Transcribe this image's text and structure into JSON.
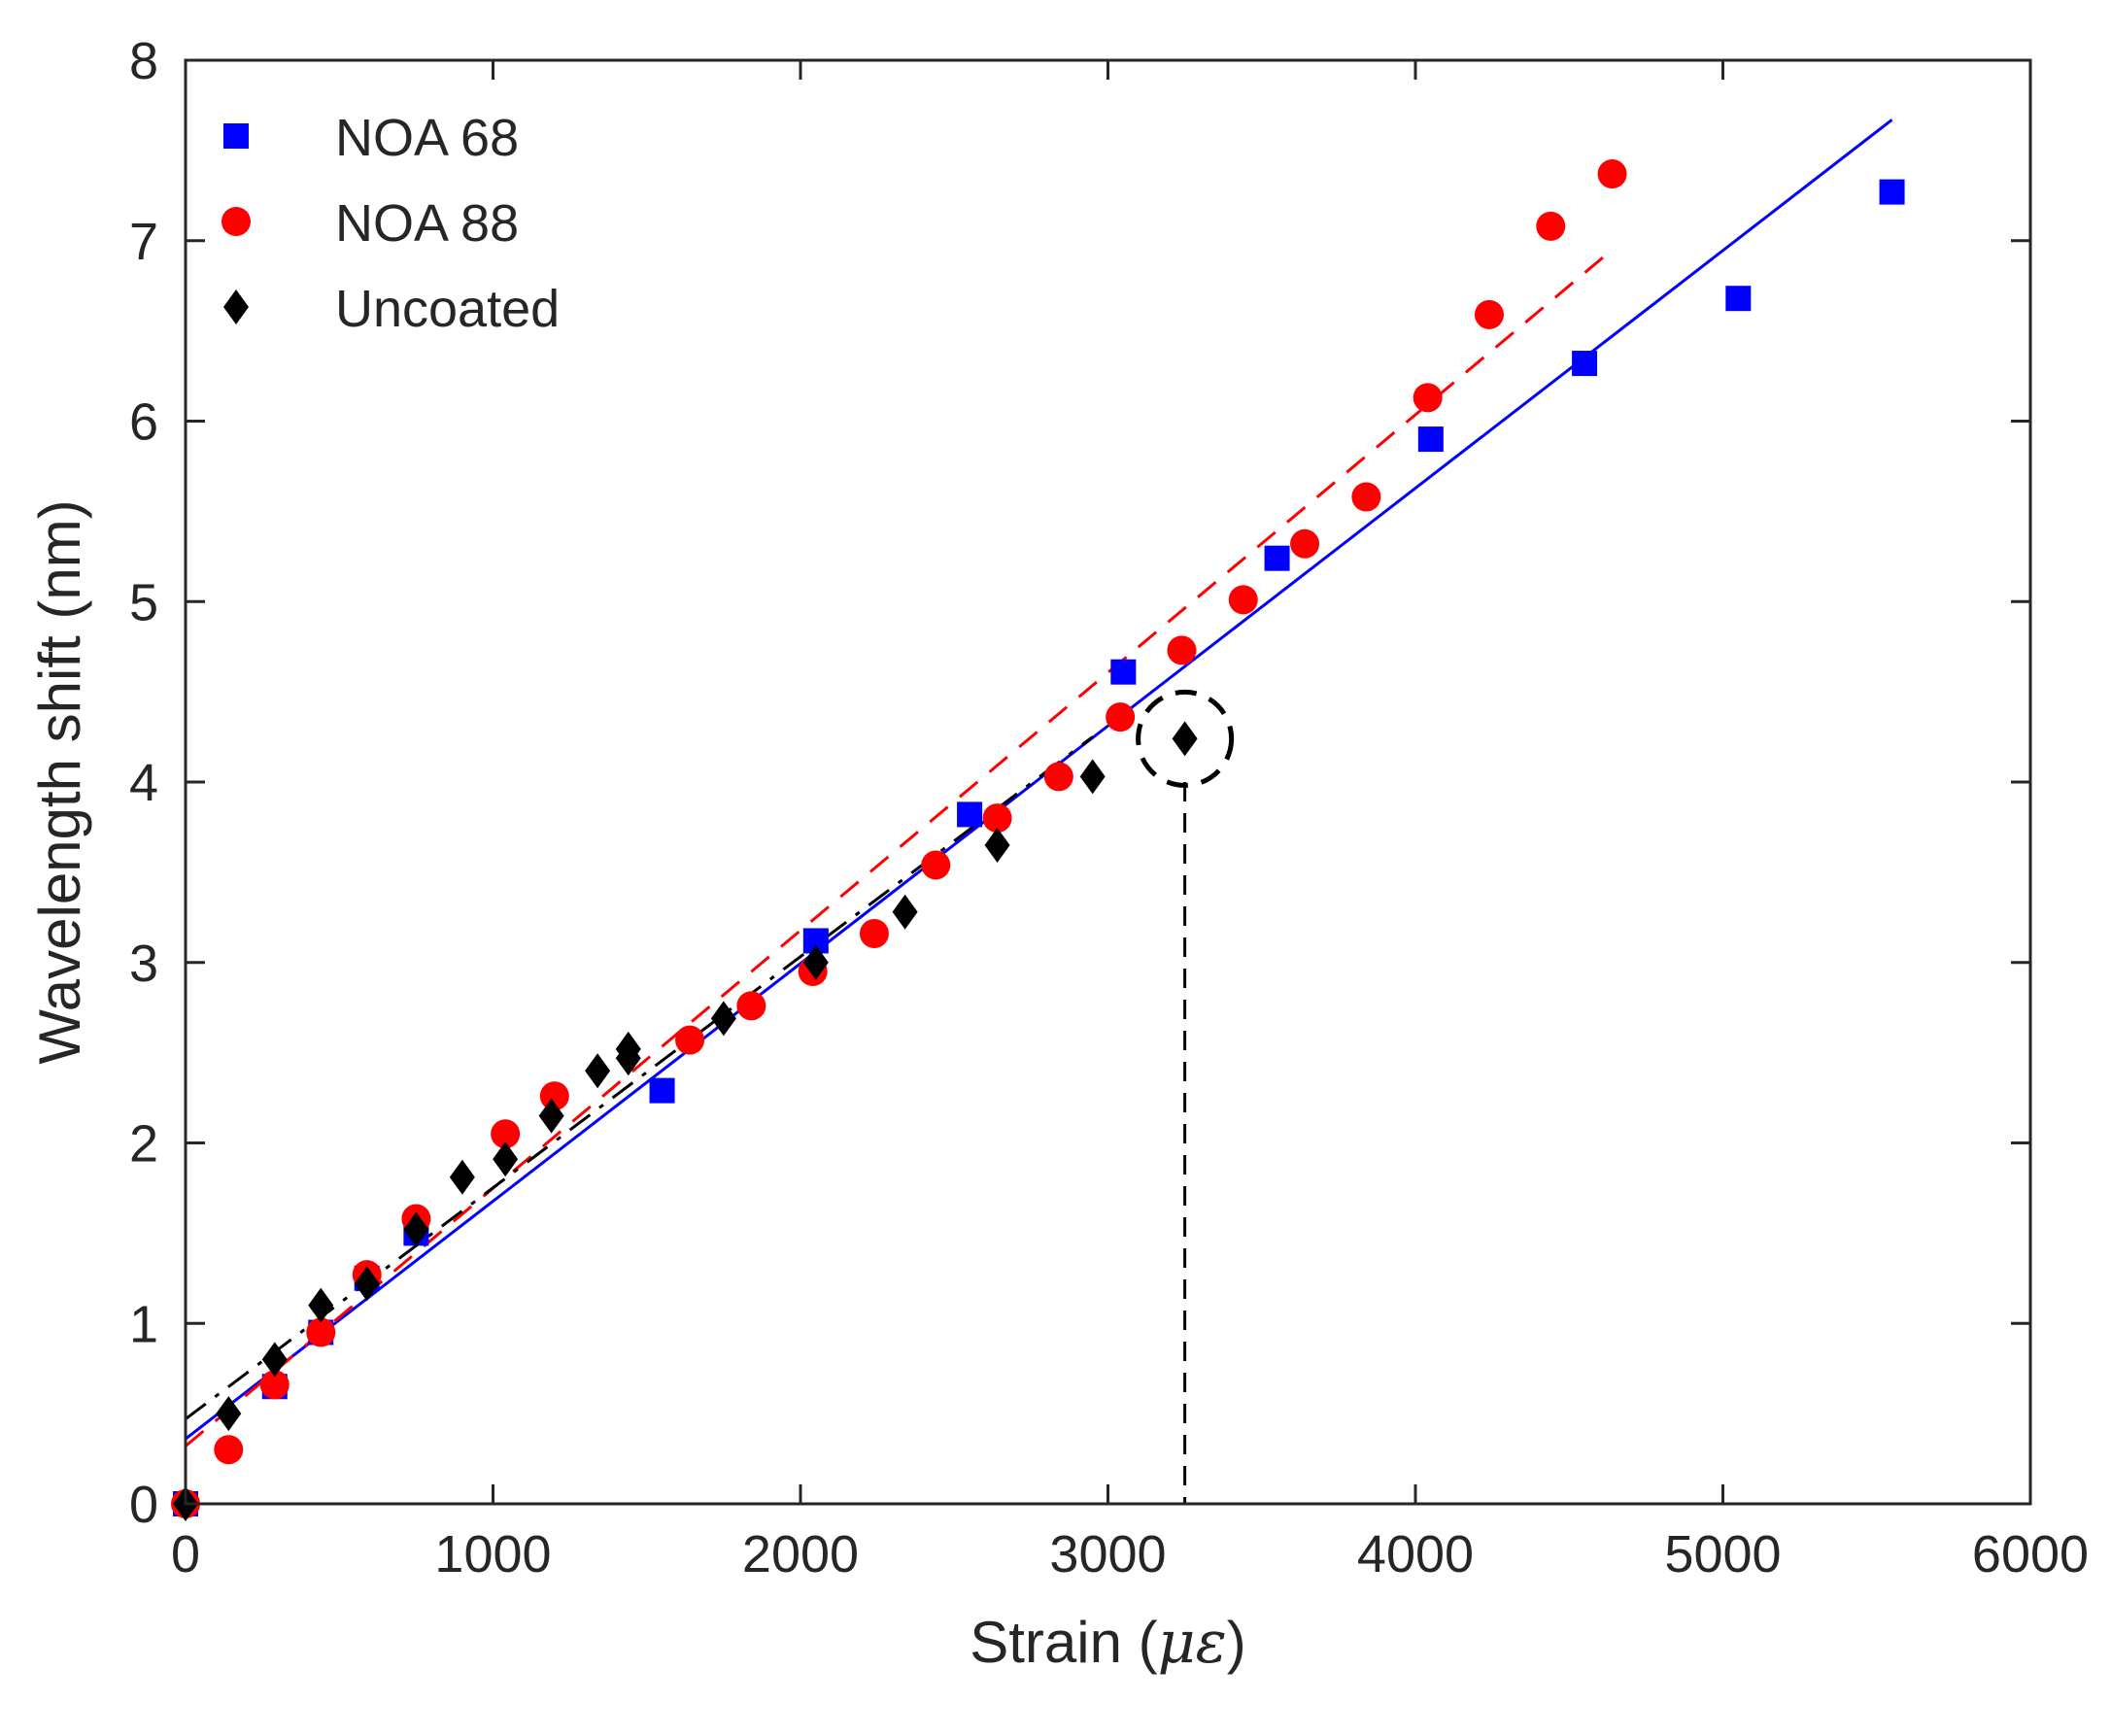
{
  "chart_data": {
    "type": "scatter",
    "title": "",
    "xlabel_prefix": "Strain (",
    "xlabel_unit": "με",
    "xlabel_suffix": ")",
    "ylabel": "Wavelength shift (nm)",
    "xlim": [
      0,
      6000
    ],
    "ylim": [
      0,
      8
    ],
    "x_ticks": [
      0,
      1000,
      2000,
      3000,
      4000,
      5000,
      6000
    ],
    "x_tick_labels": [
      "0",
      "1000",
      "2000",
      "3000",
      "4000",
      "5000",
      "6000"
    ],
    "y_ticks": [
      0,
      1,
      2,
      3,
      4,
      5,
      6,
      7,
      8
    ],
    "y_tick_labels": [
      "0",
      "1",
      "2",
      "3",
      "4",
      "5",
      "6",
      "7",
      "8"
    ],
    "grid": false,
    "legend_position": "top-left",
    "series": [
      {
        "name": "NOA 68",
        "marker": "square",
        "color": "#0000ff",
        "points": [
          [
            0,
            0
          ],
          [
            290,
            0.65
          ],
          [
            440,
            0.95
          ],
          [
            590,
            1.25
          ],
          [
            750,
            1.5
          ],
          [
            1550,
            2.29
          ],
          [
            2050,
            3.12
          ],
          [
            2550,
            3.82
          ],
          [
            3050,
            4.61
          ],
          [
            3550,
            5.24
          ],
          [
            4050,
            5.9
          ],
          [
            4550,
            6.32
          ],
          [
            5050,
            6.68
          ],
          [
            5550,
            7.27
          ]
        ],
        "fit": {
          "style": "solid",
          "x": [
            0,
            5550
          ],
          "y": [
            0.36,
            7.67
          ]
        }
      },
      {
        "name": "NOA 88",
        "marker": "circle",
        "color": "#ff0000",
        "points": [
          [
            0,
            0
          ],
          [
            140,
            0.3
          ],
          [
            290,
            0.66
          ],
          [
            440,
            0.95
          ],
          [
            590,
            1.27
          ],
          [
            750,
            1.58
          ],
          [
            1040,
            2.05
          ],
          [
            1200,
            2.26
          ],
          [
            1640,
            2.57
          ],
          [
            1840,
            2.76
          ],
          [
            2040,
            2.95
          ],
          [
            2240,
            3.16
          ],
          [
            2440,
            3.54
          ],
          [
            2640,
            3.8
          ],
          [
            2840,
            4.03
          ],
          [
            3040,
            4.36
          ],
          [
            3240,
            4.73
          ],
          [
            3440,
            5.01
          ],
          [
            3640,
            5.32
          ],
          [
            3840,
            5.58
          ],
          [
            4040,
            6.13
          ],
          [
            4240,
            6.59
          ],
          [
            4440,
            7.08
          ],
          [
            4640,
            7.37
          ]
        ],
        "fit": {
          "style": "dashed",
          "x": [
            0,
            4640
          ],
          "y": [
            0.32,
            6.95
          ]
        }
      },
      {
        "name": "Uncoated",
        "marker": "diamond",
        "color": "#000000",
        "points": [
          [
            0,
            0
          ],
          [
            140,
            0.5
          ],
          [
            290,
            0.8
          ],
          [
            440,
            1.1
          ],
          [
            590,
            1.22
          ],
          [
            750,
            1.52
          ],
          [
            900,
            1.81
          ],
          [
            1040,
            1.91
          ],
          [
            1190,
            2.15
          ],
          [
            1340,
            2.4
          ],
          [
            1440,
            2.47
          ],
          [
            1440,
            2.52
          ],
          [
            1750,
            2.69
          ],
          [
            2050,
            3.0
          ],
          [
            2340,
            3.28
          ],
          [
            2640,
            3.65
          ],
          [
            2950,
            4.03
          ],
          [
            3250,
            4.24
          ]
        ],
        "fit": {
          "style": "dashdot",
          "x": [
            0,
            2950
          ],
          "y": [
            0.47,
            4.25
          ]
        }
      }
    ],
    "annotations": [
      {
        "type": "dashed-circle",
        "around": [
          3250,
          4.24
        ],
        "color": "#000000"
      },
      {
        "type": "dashed-vertical-line",
        "x": 3250,
        "from_y": 0,
        "to_y": 4.0,
        "color": "#000000"
      }
    ]
  },
  "colors": {
    "axis": "#262626",
    "background": "#ffffff"
  }
}
